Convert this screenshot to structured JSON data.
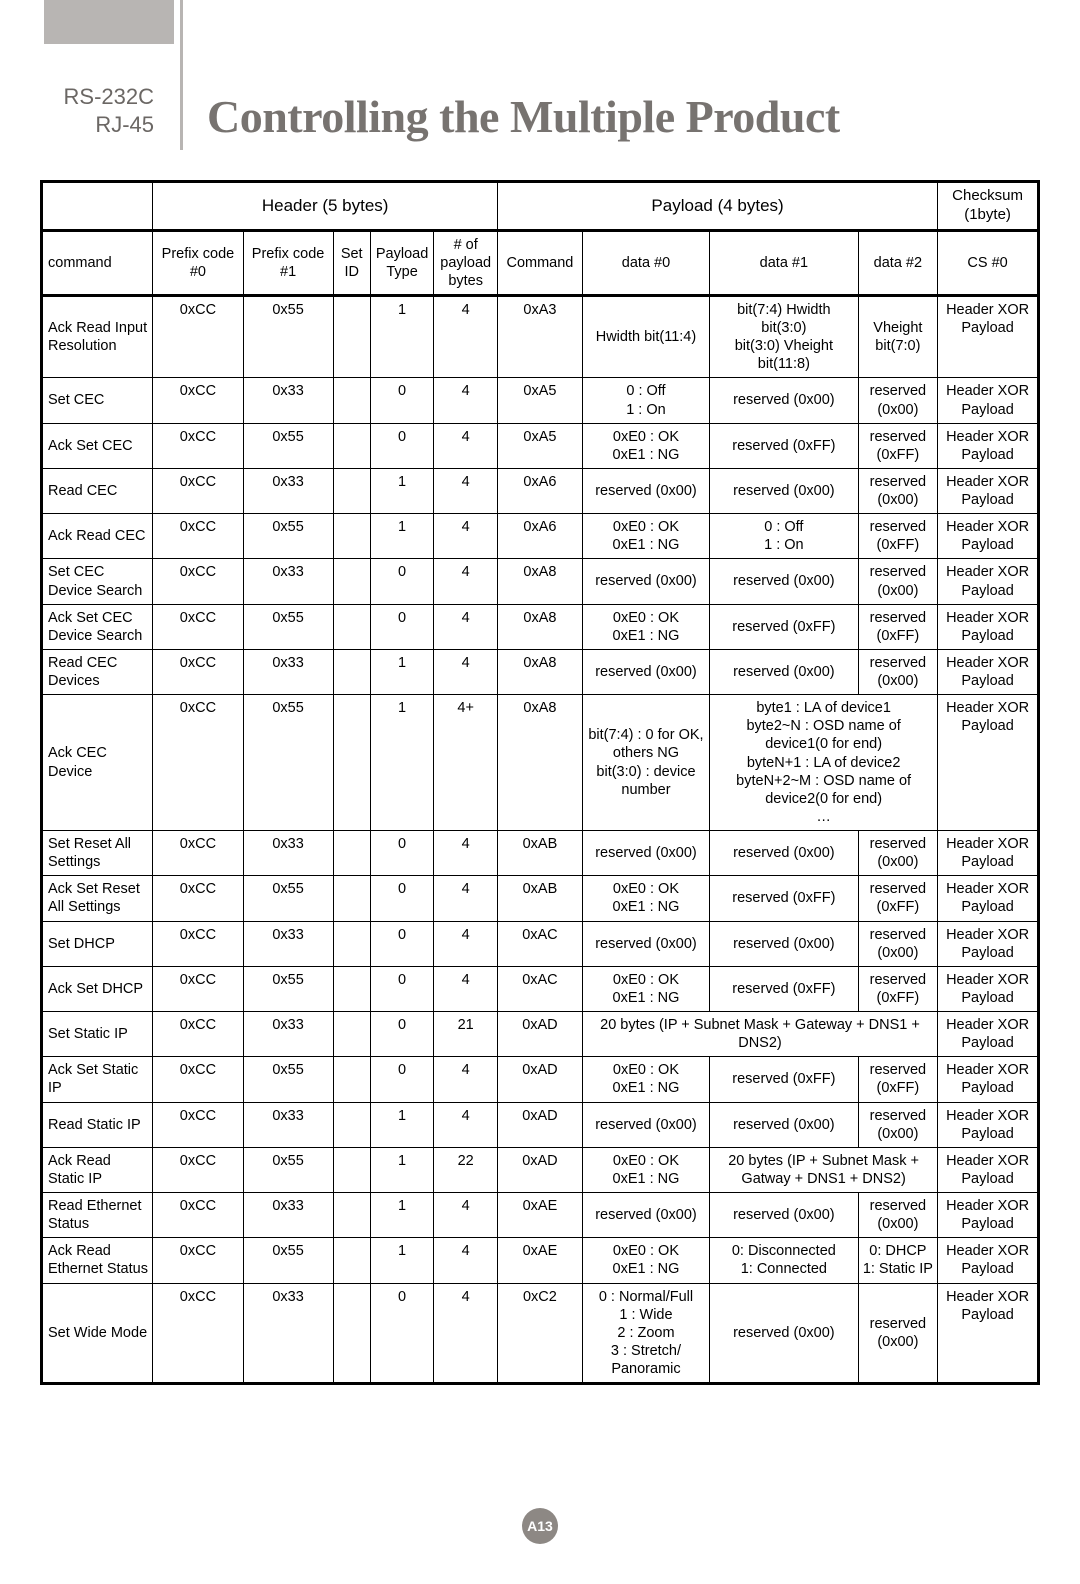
{
  "sidebar": {
    "line1": "RS-232C",
    "line2": "RJ-45"
  },
  "title": "Controlling the Multiple Product",
  "groupHeaders": {
    "g1": "Header (5 bytes)",
    "g2": "Payload (4 bytes)",
    "g3a": "Checksum",
    "g3b": "(1byte)"
  },
  "cols": {
    "c0": "command",
    "c1": "Prefix code\n#0",
    "c2": "Prefix code\n#1",
    "c3": "Set\nID",
    "c4": "Payload\nType",
    "c5": "# of\npayload\nbytes",
    "c6": "Command",
    "c7": "data #0",
    "c8": "data #1",
    "c9": "data #2",
    "c10": "CS #0"
  },
  "rows": [
    {
      "cmd": "Ack Read Input Resolution",
      "p0": "0xCC",
      "p1": "0x55",
      "sid": "",
      "pt": "1",
      "nb": "4",
      "pc": "0xA3",
      "d0": "Hwidth bit(11:4)",
      "d1": "bit(7:4)  Hwidth bit(3:0)\nbit(3:0)  Vheight bit(11:8)",
      "d2": "Vheight bit(7:0)",
      "cs": "Header XOR Payload"
    },
    {
      "cmd": "Set CEC",
      "p0": "0xCC",
      "p1": "0x33",
      "sid": "",
      "pt": "0",
      "nb": "4",
      "pc": "0xA5",
      "d0": "0 : Off\n1 : On",
      "d1": "reserved (0x00)",
      "d2": "reserved (0x00)",
      "cs": "Header XOR Payload"
    },
    {
      "cmd": "Ack Set CEC",
      "p0": "0xCC",
      "p1": "0x55",
      "sid": "",
      "pt": "0",
      "nb": "4",
      "pc": "0xA5",
      "d0": "0xE0 : OK\n0xE1 : NG",
      "d1": "reserved (0xFF)",
      "d2": "reserved (0xFF)",
      "cs": "Header XOR Payload"
    },
    {
      "cmd": "Read CEC",
      "p0": "0xCC",
      "p1": "0x33",
      "sid": "",
      "pt": "1",
      "nb": "4",
      "pc": "0xA6",
      "d0": "reserved (0x00)",
      "d1": "reserved (0x00)",
      "d2": "reserved (0x00)",
      "cs": "Header XOR Payload"
    },
    {
      "cmd": "Ack Read CEC",
      "p0": "0xCC",
      "p1": "0x55",
      "sid": "",
      "pt": "1",
      "nb": "4",
      "pc": "0xA6",
      "d0": "0xE0 : OK\n0xE1 : NG",
      "d1": "0 : Off\n1 : On",
      "d2": "reserved (0xFF)",
      "cs": "Header XOR Payload"
    },
    {
      "cmd": "Set CEC Device Search",
      "p0": "0xCC",
      "p1": "0x33",
      "sid": "",
      "pt": "0",
      "nb": "4",
      "pc": "0xA8",
      "d0": "reserved (0x00)",
      "d1": "reserved (0x00)",
      "d2": "reserved (0x00)",
      "cs": "Header XOR Payload"
    },
    {
      "cmd": "Ack Set CEC Device Search",
      "p0": "0xCC",
      "p1": "0x55",
      "sid": "",
      "pt": "0",
      "nb": "4",
      "pc": "0xA8",
      "d0": "0xE0 : OK\n0xE1 : NG",
      "d1": "reserved (0xFF)",
      "d2": "reserved (0xFF)",
      "cs": "Header XOR Payload"
    },
    {
      "cmd": "Read CEC Devices",
      "p0": "0xCC",
      "p1": "0x33",
      "sid": "",
      "pt": "1",
      "nb": "4",
      "pc": "0xA8",
      "d0": "reserved (0x00)",
      "d1": "reserved (0x00)",
      "d2": "reserved (0x00)",
      "cs": "Header XOR Payload"
    },
    {
      "cmd": "Ack CEC Device",
      "p0": "0xCC",
      "p1": "0x55",
      "sid": "",
      "pt": "1",
      "nb": "4+",
      "pc": "0xA8",
      "d0": "bit(7:4) : 0 for OK, others NG\nbit(3:0) : device number",
      "d1span": "byte1 : LA of device1\nbyte2~N : OSD name of device1(0 for end)\nbyteN+1 : LA of device2\nbyteN+2~M : OSD name of device2(0 for end)\n…",
      "cs": "Header XOR Payload",
      "d1colspan": 2
    },
    {
      "cmd": "Set Reset All Settings",
      "p0": "0xCC",
      "p1": "0x33",
      "sid": "",
      "pt": "0",
      "nb": "4",
      "pc": "0xAB",
      "d0": "reserved (0x00)",
      "d1": "reserved (0x00)",
      "d2": "reserved (0x00)",
      "cs": "Header XOR Payload"
    },
    {
      "cmd": "Ack Set Reset All Settings",
      "p0": "0xCC",
      "p1": "0x55",
      "sid": "",
      "pt": "0",
      "nb": "4",
      "pc": "0xAB",
      "d0": "0xE0 : OK\n0xE1 : NG",
      "d1": "reserved (0xFF)",
      "d2": "reserved (0xFF)",
      "cs": "Header XOR Payload"
    },
    {
      "cmd": "Set DHCP",
      "p0": "0xCC",
      "p1": "0x33",
      "sid": "",
      "pt": "0",
      "nb": "4",
      "pc": "0xAC",
      "d0": "reserved (0x00)",
      "d1": "reserved (0x00)",
      "d2": "reserved (0x00)",
      "cs": "Header XOR Payload"
    },
    {
      "cmd": "Ack Set DHCP",
      "p0": "0xCC",
      "p1": "0x55",
      "sid": "",
      "pt": "0",
      "nb": "4",
      "pc": "0xAC",
      "d0": "0xE0 : OK\n0xE1 : NG",
      "d1": "reserved (0xFF)",
      "d2": "reserved (0xFF)",
      "cs": "Header XOR Payload"
    },
    {
      "cmd": "Set Static IP",
      "p0": "0xCC",
      "p1": "0x33",
      "sid": "",
      "pt": "0",
      "nb": "21",
      "pc": "0xAD",
      "d0span": "20 bytes (IP + Subnet Mask + Gateway + DNS1 + DNS2)",
      "cs": "Header XOR Payload",
      "d0colspan": 3
    },
    {
      "cmd": "Ack Set Static IP",
      "p0": "0xCC",
      "p1": "0x55",
      "sid": "",
      "pt": "0",
      "nb": "4",
      "pc": "0xAD",
      "d0": "0xE0 : OK\n0xE1 : NG",
      "d1": "reserved (0xFF)",
      "d2": "reserved (0xFF)",
      "cs": "Header XOR Payload"
    },
    {
      "cmd": "Read Static IP",
      "p0": "0xCC",
      "p1": "0x33",
      "sid": "",
      "pt": "1",
      "nb": "4",
      "pc": "0xAD",
      "d0": "reserved (0x00)",
      "d1": "reserved (0x00)",
      "d2": "reserved (0x00)",
      "cs": "Header XOR Payload"
    },
    {
      "cmd": "Ack Read Static IP",
      "p0": "0xCC",
      "p1": "0x55",
      "sid": "",
      "pt": "1",
      "nb": "22",
      "pc": "0xAD",
      "d0": "0xE0 : OK\n0xE1 : NG",
      "d1span": "20 bytes (IP + Subnet Mask + Gatway + DNS1 + DNS2)",
      "cs": "Header XOR Payload",
      "d1colspan": 2
    },
    {
      "cmd": "Read Ethernet Status",
      "p0": "0xCC",
      "p1": "0x33",
      "sid": "",
      "pt": "1",
      "nb": "4",
      "pc": "0xAE",
      "d0": "reserved (0x00)",
      "d1": "reserved (0x00)",
      "d2": "reserved (0x00)",
      "cs": "Header XOR Payload"
    },
    {
      "cmd": "Ack Read Ethernet Status",
      "p0": "0xCC",
      "p1": "0x55",
      "sid": "",
      "pt": "1",
      "nb": "4",
      "pc": "0xAE",
      "d0": "0xE0 : OK\n0xE1 : NG",
      "d1": "0: Disconnected\n1: Connected",
      "d2": "0: DHCP\n1: Static IP",
      "cs": "Header XOR Payload"
    },
    {
      "cmd": "Set Wide Mode",
      "p0": "0xCC",
      "p1": "0x33",
      "sid": "",
      "pt": "0",
      "nb": "4",
      "pc": "0xC2",
      "d0": "0 : Normal/Full\n1 : Wide\n2 : Zoom\n3 : Stretch/ Panoramic",
      "d1": "reserved (0x00)",
      "d2": "reserved (0x00)",
      "cs": "Header XOR Payload"
    }
  ],
  "pageNum": "A13"
}
